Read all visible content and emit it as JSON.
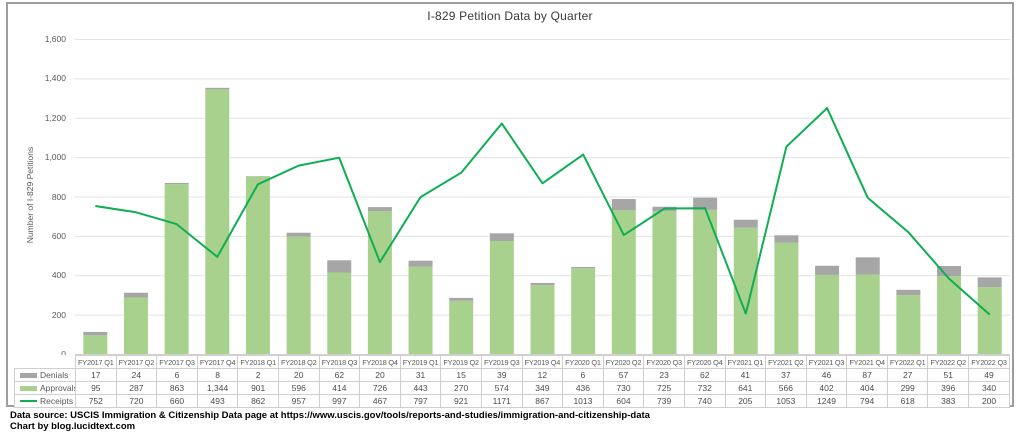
{
  "chart_data": {
    "type": "bar",
    "subtype": "stacked-bars-with-line-overlay",
    "title": "I-829 Petition Data by Quarter",
    "ylabel": "Number of I-829 Petitions",
    "xlabel": "",
    "ylim": [
      0,
      1600
    ],
    "ytick_step": 200,
    "grid": true,
    "legend_position": "left-of-data-table",
    "categories": [
      "FY2017 Q1",
      "FY2017 Q2",
      "FY2017 Q3",
      "FY2017 Q4",
      "FY2018 Q1",
      "FY2018 Q2",
      "FY2018 Q3",
      "FY2018 Q4",
      "FY2019 Q1",
      "FY2019 Q2",
      "FY2019 Q3",
      "FY2019 Q4",
      "FY2020 Q1",
      "FY2020 Q2",
      "FY2020 Q3",
      "FY2020 Q4",
      "FY2021 Q1",
      "FY2021 Q2",
      "FY2021 Q3",
      "FY2021 Q4",
      "FY2022 Q1",
      "FY2022 Q2",
      "FY2022 Q3"
    ],
    "series": [
      {
        "name": "Denials",
        "type": "bar",
        "color": "#a6a6a6",
        "thousands_separator": true,
        "values": [
          17,
          24,
          6,
          8,
          2,
          20,
          62,
          20,
          31,
          15,
          39,
          12,
          6,
          57,
          23,
          62,
          41,
          37,
          46,
          87,
          27,
          51,
          49
        ]
      },
      {
        "name": "Approvals",
        "type": "bar",
        "color": "#a9d18e",
        "thousands_separator": true,
        "values": [
          95,
          287,
          863,
          1344,
          901,
          596,
          414,
          726,
          443,
          270,
          574,
          349,
          436,
          730,
          725,
          732,
          641,
          566,
          402,
          404,
          299,
          396,
          340
        ]
      },
      {
        "name": "Receipts",
        "type": "line",
        "color": "#0fae53",
        "thousands_separator": false,
        "values": [
          752,
          720,
          660,
          493,
          862,
          957,
          997,
          467,
          797,
          921,
          1171,
          867,
          1013,
          604,
          739,
          740,
          205,
          1053,
          1249,
          794,
          618,
          383,
          200
        ]
      }
    ],
    "stack_bottom_to_top": [
      "Approvals",
      "Denials"
    ]
  },
  "footer": {
    "source_line": "Data source: USCIS Immigration & Citizenship Data page at https://www.uscis.gov/tools/reports-and-studies/immigration-and-citizenship-data",
    "credit_line": "Chart by blog.lucidtext.com"
  },
  "colors": {
    "gridline": "#e2e2e2",
    "axis_line": "#d2d2d2",
    "table_border": "#cfcfcf",
    "frame_border": "#9d9d9d"
  }
}
